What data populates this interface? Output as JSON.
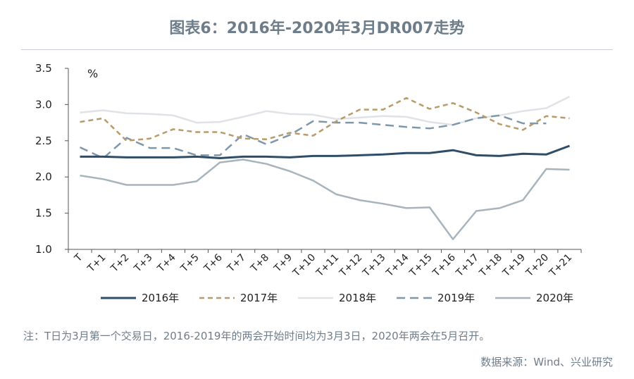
{
  "title": "图表6：2016年-2020年3月DR007走势",
  "note": "注：T日为3月第一个交易日，2016-2019年的两会开始时间均为3月3日，2020年两会在5月召开。",
  "source": "数据来源：Wind、兴业研究",
  "chart_data": {
    "type": "line",
    "title": "图表6：2016年-2020年3月DR007走势",
    "ylabel": "%",
    "xlabel": "",
    "ylim": [
      1.0,
      3.5
    ],
    "yticks": [
      "1.0",
      "1.5",
      "2.0",
      "2.5",
      "3.0",
      "3.5"
    ],
    "grid": false,
    "legend": "bottom",
    "categories": [
      "T",
      "T+1",
      "T+2",
      "T+3",
      "T+4",
      "T+5",
      "T+6",
      "T+7",
      "T+8",
      "T+9",
      "T+10",
      "T+11",
      "T+12",
      "T+13",
      "T+14",
      "T+15",
      "T+16",
      "T+17",
      "T+18",
      "T+19",
      "T+20",
      "T+21"
    ],
    "series": [
      {
        "name": "2016年",
        "color": "#2e4d69",
        "dash": "solid",
        "width": 3,
        "values": [
          2.28,
          2.28,
          2.27,
          2.27,
          2.27,
          2.28,
          2.26,
          2.28,
          2.28,
          2.27,
          2.29,
          2.29,
          2.3,
          2.31,
          2.33,
          2.33,
          2.37,
          2.3,
          2.29,
          2.32,
          2.31,
          2.43
        ]
      },
      {
        "name": "2017年",
        "color": "#b89b6a",
        "dash": "dashed",
        "width": 2.5,
        "values": [
          2.76,
          2.81,
          2.5,
          2.53,
          2.66,
          2.62,
          2.62,
          2.53,
          2.52,
          2.61,
          2.57,
          2.77,
          2.93,
          2.93,
          3.09,
          2.94,
          3.02,
          2.89,
          2.73,
          2.65,
          2.84,
          2.81
        ]
      },
      {
        "name": "2018年",
        "color": "#dfe2e6",
        "dash": "solid",
        "width": 2.5,
        "values": [
          2.89,
          2.92,
          2.88,
          2.87,
          2.85,
          2.75,
          2.76,
          2.83,
          2.91,
          2.87,
          2.86,
          2.8,
          2.82,
          2.84,
          2.83,
          2.76,
          2.72,
          2.81,
          2.85,
          2.91,
          2.95,
          3.11
        ]
      },
      {
        "name": "2019年",
        "color": "#7f97aa",
        "dash": "dashed",
        "width": 2.5,
        "values": [
          2.41,
          2.26,
          2.54,
          2.4,
          2.4,
          2.3,
          2.3,
          2.59,
          2.45,
          2.58,
          2.77,
          2.75,
          2.75,
          2.72,
          2.69,
          2.67,
          2.72,
          2.81,
          2.85,
          2.74,
          2.74,
          null
        ]
      },
      {
        "name": "2020年",
        "color": "#a7b4bc",
        "dash": "solid",
        "width": 2.5,
        "values": [
          2.02,
          1.97,
          1.89,
          1.89,
          1.89,
          1.94,
          2.2,
          2.24,
          2.18,
          2.08,
          1.95,
          1.76,
          1.68,
          1.63,
          1.57,
          1.58,
          1.14,
          1.53,
          1.57,
          1.68,
          2.11,
          2.1
        ]
      }
    ]
  }
}
